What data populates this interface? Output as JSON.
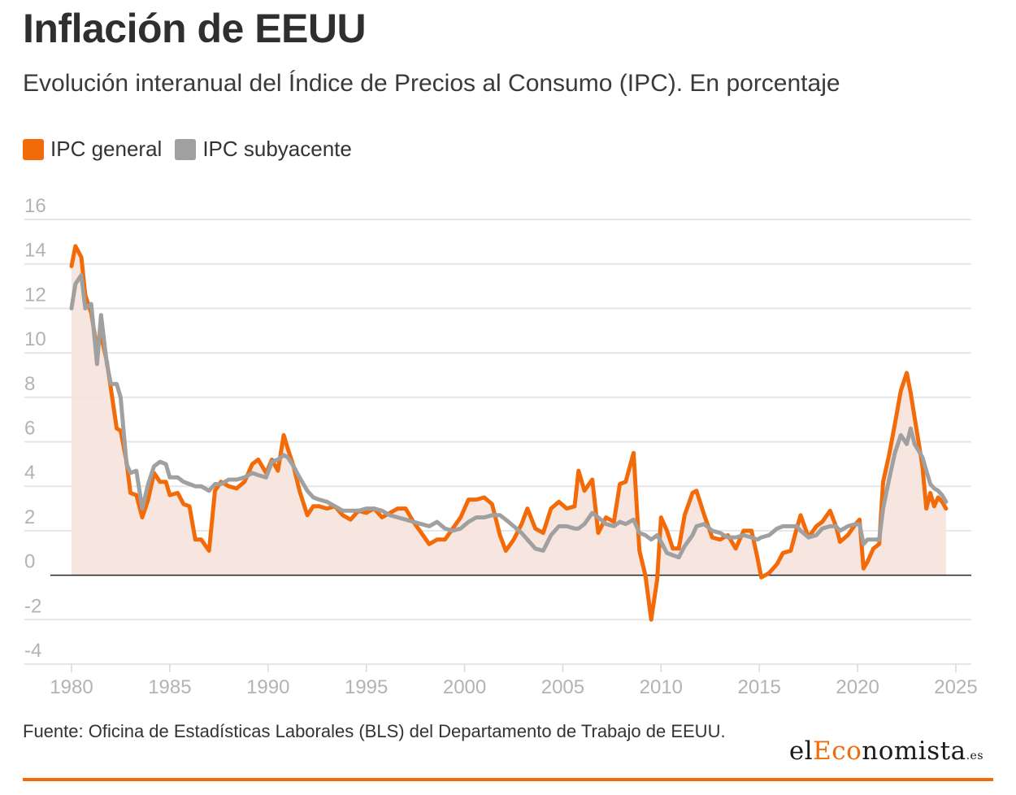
{
  "header": {
    "title": "Inflación de EEUU",
    "subtitle": "Evolución interanual del Índice de Precios al Consumo (IPC). En porcentaje"
  },
  "colors": {
    "general": "#f36b08",
    "core": "#a0a0a0",
    "area": "#f5e3dc",
    "accent": "#f36b08"
  },
  "footer": {
    "source": "Fuente: Oficina de Estadísticas Laborales (BLS) del Departamento de Trabajo de EEUU.",
    "logo": {
      "part1": "el",
      "part2": "Eco",
      "part3": "nomista",
      "tld": ".es"
    }
  },
  "chart_data": {
    "type": "line",
    "title": "",
    "xlabel": "",
    "ylabel": "",
    "xlim": [
      1979.5,
      2026
    ],
    "ylim": [
      -4,
      16
    ],
    "x_ticks": [
      1980,
      1985,
      1990,
      1995,
      2000,
      2005,
      2010,
      2015,
      2020,
      2025
    ],
    "y_ticks": [
      -4,
      -2,
      0,
      2,
      4,
      6,
      8,
      10,
      12,
      14,
      16
    ],
    "grid": true,
    "legend_position": "top-left",
    "series": [
      {
        "name": "IPC general",
        "color": "#f36b08",
        "area": true,
        "points": [
          [
            1980.0,
            13.9
          ],
          [
            1980.2,
            14.8
          ],
          [
            1980.5,
            14.3
          ],
          [
            1980.7,
            12.6
          ],
          [
            1981.0,
            11.8
          ],
          [
            1981.3,
            10.2
          ],
          [
            1981.5,
            10.8
          ],
          [
            1981.8,
            9.6
          ],
          [
            1982.0,
            8.4
          ],
          [
            1982.3,
            6.6
          ],
          [
            1982.5,
            6.5
          ],
          [
            1982.8,
            5.1
          ],
          [
            1983.0,
            3.7
          ],
          [
            1983.3,
            3.6
          ],
          [
            1983.6,
            2.6
          ],
          [
            1983.9,
            3.4
          ],
          [
            1984.2,
            4.6
          ],
          [
            1984.5,
            4.2
          ],
          [
            1984.8,
            4.2
          ],
          [
            1985.0,
            3.6
          ],
          [
            1985.4,
            3.7
          ],
          [
            1985.7,
            3.2
          ],
          [
            1986.0,
            3.1
          ],
          [
            1986.3,
            1.6
          ],
          [
            1986.6,
            1.6
          ],
          [
            1987.0,
            1.1
          ],
          [
            1987.3,
            3.8
          ],
          [
            1987.6,
            4.2
          ],
          [
            1988.0,
            4.0
          ],
          [
            1988.4,
            3.9
          ],
          [
            1988.8,
            4.2
          ],
          [
            1989.2,
            5.0
          ],
          [
            1989.5,
            5.2
          ],
          [
            1989.9,
            4.6
          ],
          [
            1990.2,
            5.2
          ],
          [
            1990.5,
            4.7
          ],
          [
            1990.8,
            6.3
          ],
          [
            1991.0,
            5.7
          ],
          [
            1991.3,
            4.9
          ],
          [
            1991.6,
            3.8
          ],
          [
            1992.0,
            2.7
          ],
          [
            1992.3,
            3.1
          ],
          [
            1992.6,
            3.1
          ],
          [
            1993.0,
            3.0
          ],
          [
            1993.4,
            3.1
          ],
          [
            1993.8,
            2.7
          ],
          [
            1994.2,
            2.5
          ],
          [
            1994.6,
            2.9
          ],
          [
            1995.0,
            2.8
          ],
          [
            1995.4,
            3.0
          ],
          [
            1995.8,
            2.6
          ],
          [
            1996.2,
            2.8
          ],
          [
            1996.6,
            3.0
          ],
          [
            1997.0,
            3.0
          ],
          [
            1997.4,
            2.4
          ],
          [
            1997.8,
            1.9
          ],
          [
            1998.2,
            1.4
          ],
          [
            1998.6,
            1.6
          ],
          [
            1999.0,
            1.6
          ],
          [
            1999.4,
            2.1
          ],
          [
            1999.8,
            2.6
          ],
          [
            2000.2,
            3.4
          ],
          [
            2000.6,
            3.4
          ],
          [
            2001.0,
            3.5
          ],
          [
            2001.4,
            3.2
          ],
          [
            2001.8,
            1.8
          ],
          [
            2002.1,
            1.1
          ],
          [
            2002.5,
            1.6
          ],
          [
            2002.9,
            2.3
          ],
          [
            2003.2,
            3.0
          ],
          [
            2003.6,
            2.1
          ],
          [
            2004.0,
            1.9
          ],
          [
            2004.4,
            3.0
          ],
          [
            2004.8,
            3.3
          ],
          [
            2005.2,
            3.0
          ],
          [
            2005.6,
            3.1
          ],
          [
            2005.8,
            4.7
          ],
          [
            2006.1,
            3.8
          ],
          [
            2006.5,
            4.3
          ],
          [
            2006.8,
            1.9
          ],
          [
            2007.2,
            2.6
          ],
          [
            2007.6,
            2.4
          ],
          [
            2007.9,
            4.1
          ],
          [
            2008.2,
            4.2
          ],
          [
            2008.6,
            5.5
          ],
          [
            2008.9,
            1.1
          ],
          [
            2009.2,
            0.0
          ],
          [
            2009.5,
            -2.0
          ],
          [
            2009.8,
            -0.2
          ],
          [
            2010.0,
            2.6
          ],
          [
            2010.3,
            2.0
          ],
          [
            2010.6,
            1.2
          ],
          [
            2010.9,
            1.2
          ],
          [
            2011.2,
            2.7
          ],
          [
            2011.6,
            3.7
          ],
          [
            2011.8,
            3.8
          ],
          [
            2012.2,
            2.7
          ],
          [
            2012.6,
            1.7
          ],
          [
            2013.0,
            1.6
          ],
          [
            2013.4,
            1.8
          ],
          [
            2013.8,
            1.2
          ],
          [
            2014.2,
            2.0
          ],
          [
            2014.6,
            2.0
          ],
          [
            2014.9,
            0.8
          ],
          [
            2015.1,
            -0.1
          ],
          [
            2015.5,
            0.1
          ],
          [
            2015.9,
            0.5
          ],
          [
            2016.2,
            1.0
          ],
          [
            2016.6,
            1.1
          ],
          [
            2016.9,
            2.1
          ],
          [
            2017.1,
            2.7
          ],
          [
            2017.5,
            1.7
          ],
          [
            2017.9,
            2.2
          ],
          [
            2018.2,
            2.4
          ],
          [
            2018.6,
            2.9
          ],
          [
            2018.9,
            2.2
          ],
          [
            2019.1,
            1.5
          ],
          [
            2019.5,
            1.8
          ],
          [
            2019.9,
            2.3
          ],
          [
            2020.1,
            2.5
          ],
          [
            2020.3,
            0.3
          ],
          [
            2020.5,
            0.6
          ],
          [
            2020.8,
            1.2
          ],
          [
            2021.1,
            1.4
          ],
          [
            2021.3,
            4.2
          ],
          [
            2021.6,
            5.4
          ],
          [
            2021.9,
            6.8
          ],
          [
            2022.2,
            8.3
          ],
          [
            2022.5,
            9.1
          ],
          [
            2022.7,
            8.2
          ],
          [
            2022.9,
            7.1
          ],
          [
            2023.1,
            6.0
          ],
          [
            2023.3,
            4.9
          ],
          [
            2023.5,
            3.0
          ],
          [
            2023.7,
            3.7
          ],
          [
            2023.9,
            3.1
          ],
          [
            2024.1,
            3.5
          ],
          [
            2024.3,
            3.3
          ],
          [
            2024.5,
            3.0
          ]
        ]
      },
      {
        "name": "IPC subyacente",
        "color": "#a0a0a0",
        "area": false,
        "points": [
          [
            1980.0,
            12.0
          ],
          [
            1980.2,
            13.1
          ],
          [
            1980.5,
            13.5
          ],
          [
            1980.7,
            12.0
          ],
          [
            1981.0,
            12.2
          ],
          [
            1981.3,
            9.5
          ],
          [
            1981.5,
            11.7
          ],
          [
            1981.8,
            9.5
          ],
          [
            1982.0,
            8.6
          ],
          [
            1982.3,
            8.6
          ],
          [
            1982.5,
            8.0
          ],
          [
            1982.8,
            5.0
          ],
          [
            1983.0,
            4.6
          ],
          [
            1983.3,
            4.7
          ],
          [
            1983.6,
            3.0
          ],
          [
            1983.9,
            4.1
          ],
          [
            1984.2,
            4.9
          ],
          [
            1984.5,
            5.1
          ],
          [
            1984.8,
            5.0
          ],
          [
            1985.0,
            4.4
          ],
          [
            1985.4,
            4.4
          ],
          [
            1985.7,
            4.2
          ],
          [
            1986.0,
            4.1
          ],
          [
            1986.3,
            4.0
          ],
          [
            1986.6,
            4.0
          ],
          [
            1987.0,
            3.8
          ],
          [
            1987.3,
            4.1
          ],
          [
            1987.6,
            4.1
          ],
          [
            1988.0,
            4.3
          ],
          [
            1988.4,
            4.3
          ],
          [
            1988.8,
            4.4
          ],
          [
            1989.2,
            4.6
          ],
          [
            1989.5,
            4.5
          ],
          [
            1989.9,
            4.4
          ],
          [
            1990.2,
            5.1
          ],
          [
            1990.5,
            5.2
          ],
          [
            1990.8,
            5.4
          ],
          [
            1991.0,
            5.3
          ],
          [
            1991.3,
            4.9
          ],
          [
            1991.6,
            4.4
          ],
          [
            1992.0,
            3.8
          ],
          [
            1992.3,
            3.5
          ],
          [
            1992.6,
            3.4
          ],
          [
            1993.0,
            3.3
          ],
          [
            1993.4,
            3.1
          ],
          [
            1993.8,
            2.9
          ],
          [
            1994.2,
            2.9
          ],
          [
            1994.6,
            2.9
          ],
          [
            1995.0,
            3.0
          ],
          [
            1995.4,
            3.0
          ],
          [
            1995.8,
            2.9
          ],
          [
            1996.2,
            2.7
          ],
          [
            1996.6,
            2.6
          ],
          [
            1997.0,
            2.5
          ],
          [
            1997.4,
            2.4
          ],
          [
            1997.8,
            2.3
          ],
          [
            1998.2,
            2.2
          ],
          [
            1998.6,
            2.4
          ],
          [
            1999.0,
            2.1
          ],
          [
            1999.4,
            2.0
          ],
          [
            1999.8,
            2.1
          ],
          [
            2000.2,
            2.4
          ],
          [
            2000.6,
            2.6
          ],
          [
            2001.0,
            2.6
          ],
          [
            2001.4,
            2.7
          ],
          [
            2001.8,
            2.7
          ],
          [
            2002.1,
            2.5
          ],
          [
            2002.5,
            2.2
          ],
          [
            2002.9,
            1.9
          ],
          [
            2003.2,
            1.6
          ],
          [
            2003.6,
            1.2
          ],
          [
            2004.0,
            1.1
          ],
          [
            2004.4,
            1.8
          ],
          [
            2004.8,
            2.2
          ],
          [
            2005.2,
            2.2
          ],
          [
            2005.6,
            2.1
          ],
          [
            2005.8,
            2.1
          ],
          [
            2006.1,
            2.3
          ],
          [
            2006.5,
            2.8
          ],
          [
            2006.8,
            2.6
          ],
          [
            2007.2,
            2.3
          ],
          [
            2007.6,
            2.2
          ],
          [
            2007.9,
            2.4
          ],
          [
            2008.2,
            2.3
          ],
          [
            2008.6,
            2.5
          ],
          [
            2008.9,
            1.9
          ],
          [
            2009.2,
            1.8
          ],
          [
            2009.5,
            1.6
          ],
          [
            2009.8,
            1.8
          ],
          [
            2010.0,
            1.5
          ],
          [
            2010.3,
            1.0
          ],
          [
            2010.6,
            0.9
          ],
          [
            2010.9,
            0.8
          ],
          [
            2011.2,
            1.3
          ],
          [
            2011.6,
            1.8
          ],
          [
            2011.8,
            2.2
          ],
          [
            2012.2,
            2.3
          ],
          [
            2012.6,
            2.0
          ],
          [
            2013.0,
            1.9
          ],
          [
            2013.4,
            1.7
          ],
          [
            2013.8,
            1.7
          ],
          [
            2014.2,
            1.8
          ],
          [
            2014.6,
            1.7
          ],
          [
            2014.9,
            1.6
          ],
          [
            2015.1,
            1.7
          ],
          [
            2015.5,
            1.8
          ],
          [
            2015.9,
            2.1
          ],
          [
            2016.2,
            2.2
          ],
          [
            2016.6,
            2.2
          ],
          [
            2016.9,
            2.2
          ],
          [
            2017.1,
            2.0
          ],
          [
            2017.5,
            1.7
          ],
          [
            2017.9,
            1.8
          ],
          [
            2018.2,
            2.1
          ],
          [
            2018.6,
            2.2
          ],
          [
            2018.9,
            2.2
          ],
          [
            2019.1,
            2.0
          ],
          [
            2019.5,
            2.2
          ],
          [
            2019.9,
            2.3
          ],
          [
            2020.1,
            2.3
          ],
          [
            2020.3,
            1.4
          ],
          [
            2020.5,
            1.6
          ],
          [
            2020.8,
            1.6
          ],
          [
            2021.1,
            1.6
          ],
          [
            2021.3,
            3.0
          ],
          [
            2021.6,
            4.3
          ],
          [
            2021.9,
            5.5
          ],
          [
            2022.2,
            6.3
          ],
          [
            2022.5,
            5.9
          ],
          [
            2022.7,
            6.6
          ],
          [
            2022.9,
            5.9
          ],
          [
            2023.1,
            5.6
          ],
          [
            2023.3,
            5.3
          ],
          [
            2023.5,
            4.7
          ],
          [
            2023.7,
            4.1
          ],
          [
            2023.9,
            3.9
          ],
          [
            2024.1,
            3.8
          ],
          [
            2024.3,
            3.6
          ],
          [
            2024.5,
            3.3
          ]
        ]
      }
    ]
  }
}
